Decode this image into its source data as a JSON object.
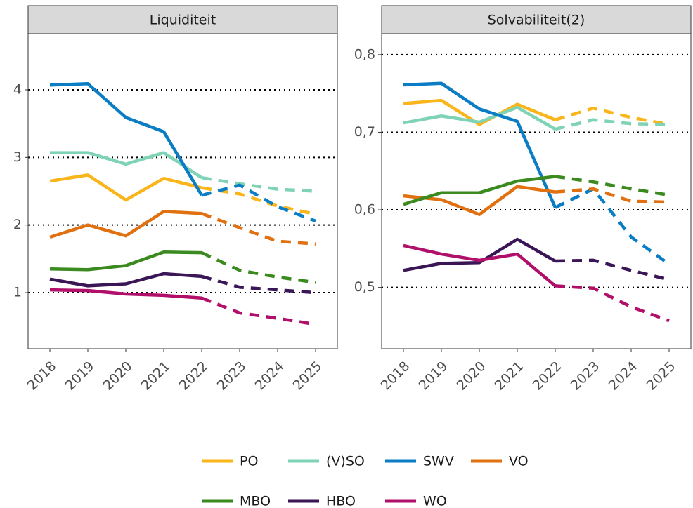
{
  "chart_data": [
    {
      "type": "line",
      "title": "Liquiditeit",
      "categories": [
        "2018",
        "2019",
        "2020",
        "2021",
        "2022",
        "2023",
        "2024",
        "2025"
      ],
      "dashed_from": "2022",
      "ylim": [
        0.17,
        4.83
      ],
      "yticks": [
        1,
        2,
        3,
        4
      ],
      "grid": true,
      "series": [
        {
          "name": "PO",
          "color": "#f9b51a",
          "values": [
            2.65,
            2.74,
            2.37,
            2.69,
            2.55,
            2.46,
            2.28,
            2.16
          ]
        },
        {
          "name": "(V)SO",
          "color": "#7fd3b5",
          "values": [
            3.07,
            3.07,
            2.9,
            3.07,
            2.7,
            2.61,
            2.53,
            2.5
          ]
        },
        {
          "name": "SWV",
          "color": "#0a7dc4",
          "values": [
            4.07,
            4.09,
            3.59,
            3.38,
            2.44,
            2.59,
            2.27,
            2.06
          ]
        },
        {
          "name": "VO",
          "color": "#e07010",
          "values": [
            1.82,
            2.0,
            1.84,
            2.2,
            2.17,
            1.96,
            1.76,
            1.72
          ]
        },
        {
          "name": "MBO",
          "color": "#3a8a1f",
          "values": [
            1.35,
            1.34,
            1.4,
            1.6,
            1.59,
            1.33,
            1.23,
            1.15
          ]
        },
        {
          "name": "HBO",
          "color": "#3b1657",
          "values": [
            1.2,
            1.1,
            1.13,
            1.28,
            1.24,
            1.08,
            1.04,
            1.0
          ]
        },
        {
          "name": "WO",
          "color": "#b0106a",
          "values": [
            1.04,
            1.03,
            0.98,
            0.96,
            0.92,
            0.7,
            0.62,
            0.53
          ]
        }
      ]
    },
    {
      "type": "line",
      "title": "Solvabiliteit(2)",
      "categories": [
        "2018",
        "2019",
        "2020",
        "2021",
        "2022",
        "2023",
        "2024",
        "2025"
      ],
      "dashed_from": "2022",
      "ylim": [
        0.421,
        0.827
      ],
      "yticks": [
        {
          "value": 0.5,
          "label": "0,5"
        },
        {
          "value": 0.6,
          "label": "0,6"
        },
        {
          "value": 0.7,
          "label": "0,7"
        },
        {
          "value": 0.8,
          "label": "0,8"
        }
      ],
      "grid": true,
      "series": [
        {
          "values": [
            0.737,
            0.741,
            0.71,
            0.736,
            0.716,
            0.731,
            0.719,
            0.71
          ]
        },
        {
          "values": [
            0.712,
            0.721,
            0.713,
            0.732,
            0.704,
            0.716,
            0.711,
            0.71
          ]
        },
        {
          "values": [
            0.761,
            0.763,
            0.73,
            0.714,
            0.603,
            0.627,
            0.565,
            0.53
          ]
        },
        {
          "values": [
            0.618,
            0.613,
            0.594,
            0.63,
            0.623,
            0.627,
            0.611,
            0.61
          ]
        },
        {
          "values": [
            0.607,
            0.622,
            0.622,
            0.637,
            0.643,
            0.636,
            0.627,
            0.619
          ]
        },
        {
          "values": [
            0.522,
            0.531,
            0.532,
            0.562,
            0.534,
            0.535,
            0.522,
            0.51
          ]
        },
        {
          "values": [
            0.554,
            0.543,
            0.535,
            0.543,
            0.502,
            0.499,
            0.475,
            0.457
          ]
        }
      ]
    }
  ]
}
